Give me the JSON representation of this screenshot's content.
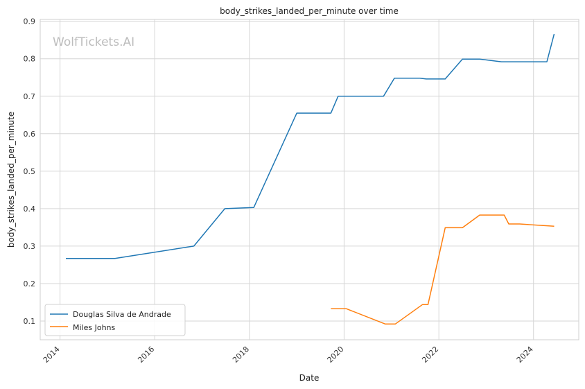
{
  "chart_data": {
    "type": "line",
    "title": "body_strikes_landed_per_minute over time",
    "xlabel": "Date",
    "ylabel": "body_strikes_landed_per_minute",
    "watermark": "WolfTickets.AI",
    "xlim": [
      "2013-08-01",
      "2024-12-15"
    ],
    "ylim": [
      0.05,
      0.905
    ],
    "x_ticks": [
      "2014",
      "2016",
      "2018",
      "2020",
      "2022",
      "2024"
    ],
    "y_ticks": [
      "0.1",
      "0.2",
      "0.3",
      "0.4",
      "0.5",
      "0.6",
      "0.7",
      "0.8",
      "0.9"
    ],
    "grid": true,
    "legend_position": "lower left",
    "series": [
      {
        "name": "Douglas Silva de Andrade",
        "color": "#1f77b4",
        "points": [
          [
            "2014-02-15",
            0.267
          ],
          [
            "2015-02-28",
            0.267
          ],
          [
            "2016-10-29",
            0.3
          ],
          [
            "2017-06-25",
            0.4
          ],
          [
            "2018-02-03",
            0.403
          ],
          [
            "2019-01-01",
            0.655
          ],
          [
            "2019-09-21",
            0.655
          ],
          [
            "2019-11-16",
            0.7
          ],
          [
            "2020-10-31",
            0.7
          ],
          [
            "2021-01-23",
            0.748
          ],
          [
            "2021-08-07",
            0.748
          ],
          [
            "2021-09-25",
            0.746
          ],
          [
            "2022-02-19",
            0.746
          ],
          [
            "2022-07-02",
            0.799
          ],
          [
            "2022-11-12",
            0.799
          ],
          [
            "2023-04-29",
            0.792
          ],
          [
            "2024-04-13",
            0.792
          ],
          [
            "2024-06-08",
            0.866
          ]
        ]
      },
      {
        "name": "Miles Johns",
        "color": "#ff7f0e",
        "points": [
          [
            "2019-09-21",
            0.133
          ],
          [
            "2020-01-18",
            0.133
          ],
          [
            "2020-11-14",
            0.092
          ],
          [
            "2021-01-30",
            0.092
          ],
          [
            "2021-08-28",
            0.144
          ],
          [
            "2021-10-09",
            0.144
          ],
          [
            "2022-02-19",
            0.349
          ],
          [
            "2022-07-02",
            0.349
          ],
          [
            "2022-11-12",
            0.383
          ],
          [
            "2023-05-20",
            0.383
          ],
          [
            "2023-06-24",
            0.359
          ],
          [
            "2023-09-16",
            0.359
          ],
          [
            "2024-06-08",
            0.353
          ]
        ]
      }
    ]
  }
}
